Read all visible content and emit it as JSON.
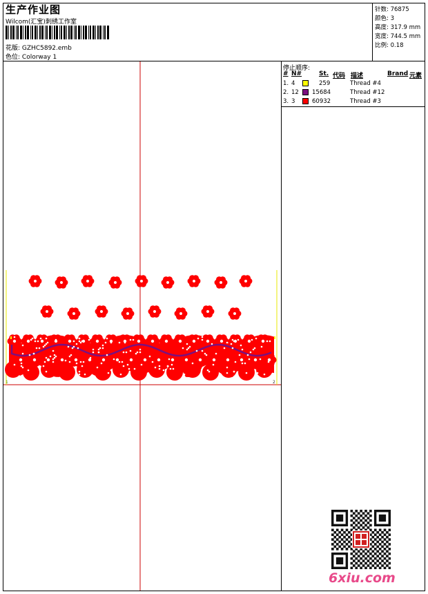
{
  "header": {
    "title": "生产作业图",
    "subtitle": "Wilcom(汇宝)刺绣工作室",
    "design_label": "花版:",
    "design_value": "GZHC5892.emb",
    "colorway_label": "色位:",
    "colorway_value": "Colorway 1"
  },
  "stats": {
    "stitches_label": "针数:",
    "stitches_value": "76875",
    "colors_label": "颜色:",
    "colors_value": "3",
    "height_label": "高度:",
    "height_value": "317.9 mm",
    "width_label": "宽度:",
    "width_value": "744.5 mm",
    "scale_label": "比例:",
    "scale_value": "0.18"
  },
  "stop_sequence": {
    "title": "停止顺序:",
    "headers": {
      "hash": "#",
      "n": "N#",
      "st": "St.",
      "code": "代码",
      "desc": "描述",
      "brand": "Brand",
      "elem": "元素"
    },
    "rows": [
      {
        "index": "1.",
        "n": "4",
        "color": "#ffff00",
        "st": "259",
        "desc": "Thread #4"
      },
      {
        "index": "2.",
        "n": "12",
        "color": "#7a1080",
        "st": "15684",
        "desc": "Thread #12"
      },
      {
        "index": "3.",
        "n": "3",
        "color": "#ff0000",
        "st": "60932",
        "desc": "Thread #3"
      }
    ]
  },
  "design": {
    "start_marker": "1",
    "end_marker": "2",
    "crosshair_color": "#cc0000",
    "stitch_red": "#ff0000",
    "stitch_purple": "#7a1080",
    "stitch_yellow": "#ffff00"
  },
  "watermark": "6xiu.com",
  "icons": {
    "qr": "qr-code-icon",
    "seal": "red-seal-stamp-icon"
  }
}
